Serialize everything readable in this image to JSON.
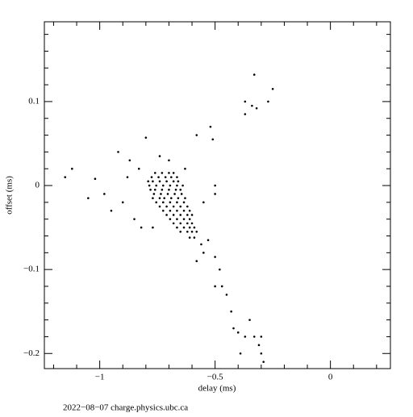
{
  "chart_data": {
    "type": "scatter",
    "footer": "2022−08−07 charge.physics.ubc.ca",
    "xlabel": "delay (ms)",
    "ylabel": "offset (ms)",
    "xlim": [
      -1.24,
      0.26
    ],
    "ylim": [
      -0.218,
      0.195
    ],
    "xticks": [
      {
        "value": -1,
        "label": "−1"
      },
      {
        "value": -0.5,
        "label": "−0.5"
      },
      0
    ],
    "yticks": [
      0.1,
      0,
      {
        "value": -0.1,
        "label": "−0.1"
      },
      {
        "value": -0.2,
        "label": "−0.2"
      }
    ],
    "xminorticks": [
      -1.2,
      -1.1,
      -0.9,
      -0.8,
      -0.7,
      -0.6,
      -0.4,
      -0.3,
      -0.2,
      -0.1,
      0.1,
      0.2
    ],
    "yminorticks": [
      0.18,
      0.16,
      0.14,
      0.12,
      0.08,
      0.06,
      0.04,
      0.02,
      -0.02,
      -0.04,
      -0.06,
      -0.08,
      -0.12,
      -0.14,
      -0.16,
      -0.18
    ],
    "series": [
      {
        "color": "#000000",
        "x": [
          -0.76,
          -0.73,
          -0.7,
          -0.68,
          -0.79,
          -0.77,
          -0.74,
          -0.71,
          -0.68,
          -0.66,
          -0.78,
          -0.76,
          -0.73,
          -0.7,
          -0.67,
          -0.65,
          -0.77,
          -0.74,
          -0.72,
          -0.69,
          -0.66,
          -0.63,
          -0.74,
          -0.71,
          -0.68,
          -0.65,
          -0.62,
          -0.71,
          -0.68,
          -0.65,
          -0.62,
          -0.6,
          -0.68,
          -0.65,
          -0.62,
          -0.6,
          -0.65,
          -0.62,
          -0.6,
          -0.58,
          -0.61,
          -0.59,
          -0.775,
          -0.745,
          -0.715,
          -0.69,
          -0.665,
          -0.785,
          -0.755,
          -0.725,
          -0.695,
          -0.665,
          -0.64,
          -0.765,
          -0.735,
          -0.705,
          -0.675,
          -0.645,
          -0.755,
          -0.725,
          -0.695,
          -0.665,
          -0.635,
          -0.725,
          -0.695,
          -0.665,
          -0.635,
          -0.61,
          -0.695,
          -0.665,
          -0.635,
          -0.61,
          -0.665,
          -0.635,
          -0.61,
          -0.59,
          -1.12,
          -1.05,
          -1.02,
          -0.98,
          -0.92,
          -0.9,
          -0.87,
          -0.85,
          -0.83,
          -0.82,
          -0.8,
          -0.77,
          -0.74,
          -0.7,
          -0.63,
          -0.58,
          -0.52,
          -0.51,
          -0.55,
          -0.5,
          -0.5,
          -0.53,
          -0.56,
          -0.58,
          -0.55,
          -0.5,
          -0.48,
          -0.47,
          -0.5,
          -0.45,
          -0.43,
          -0.42,
          -0.4,
          -0.37,
          -0.35,
          -0.33,
          -0.3,
          -0.31,
          -0.3,
          -0.29,
          -0.39,
          -0.37,
          -0.37,
          -0.34,
          -0.33,
          -0.32,
          -0.27,
          -0.25,
          -1.15,
          -0.95,
          -0.88
        ],
        "values": [
          0.015,
          0.015,
          0.015,
          0.015,
          0.005,
          0.005,
          0.005,
          0.005,
          0.005,
          0.005,
          -0.005,
          -0.005,
          -0.005,
          -0.005,
          -0.005,
          -0.005,
          -0.015,
          -0.015,
          -0.015,
          -0.015,
          -0.015,
          -0.015,
          -0.025,
          -0.025,
          -0.025,
          -0.025,
          -0.025,
          -0.035,
          -0.035,
          -0.035,
          -0.035,
          -0.035,
          -0.045,
          -0.045,
          -0.045,
          -0.045,
          -0.055,
          -0.055,
          -0.055,
          -0.055,
          -0.062,
          -0.062,
          0.01,
          0.01,
          0.01,
          0.01,
          0.01,
          0,
          0,
          0,
          0,
          0,
          0,
          -0.01,
          -0.01,
          -0.01,
          -0.01,
          -0.01,
          -0.02,
          -0.02,
          -0.02,
          -0.02,
          -0.02,
          -0.03,
          -0.03,
          -0.03,
          -0.03,
          -0.03,
          -0.04,
          -0.04,
          -0.04,
          -0.04,
          -0.05,
          -0.05,
          -0.05,
          -0.05,
          0.02,
          -0.015,
          0.008,
          -0.01,
          0.04,
          -0.02,
          0.03,
          -0.04,
          0.02,
          -0.05,
          0.057,
          -0.05,
          0.035,
          0.03,
          0.02,
          0.06,
          0.07,
          0.055,
          -0.02,
          -0.01,
          0,
          -0.065,
          -0.07,
          -0.09,
          -0.08,
          -0.085,
          -0.1,
          -0.12,
          -0.12,
          -0.13,
          -0.15,
          -0.17,
          -0.175,
          -0.18,
          -0.16,
          -0.18,
          -0.18,
          -0.19,
          -0.2,
          -0.21,
          -0.2,
          0.085,
          0.1,
          0.095,
          0.132,
          0.092,
          0.1,
          0.115,
          0.01,
          -0.03,
          0.01
        ]
      }
    ]
  }
}
